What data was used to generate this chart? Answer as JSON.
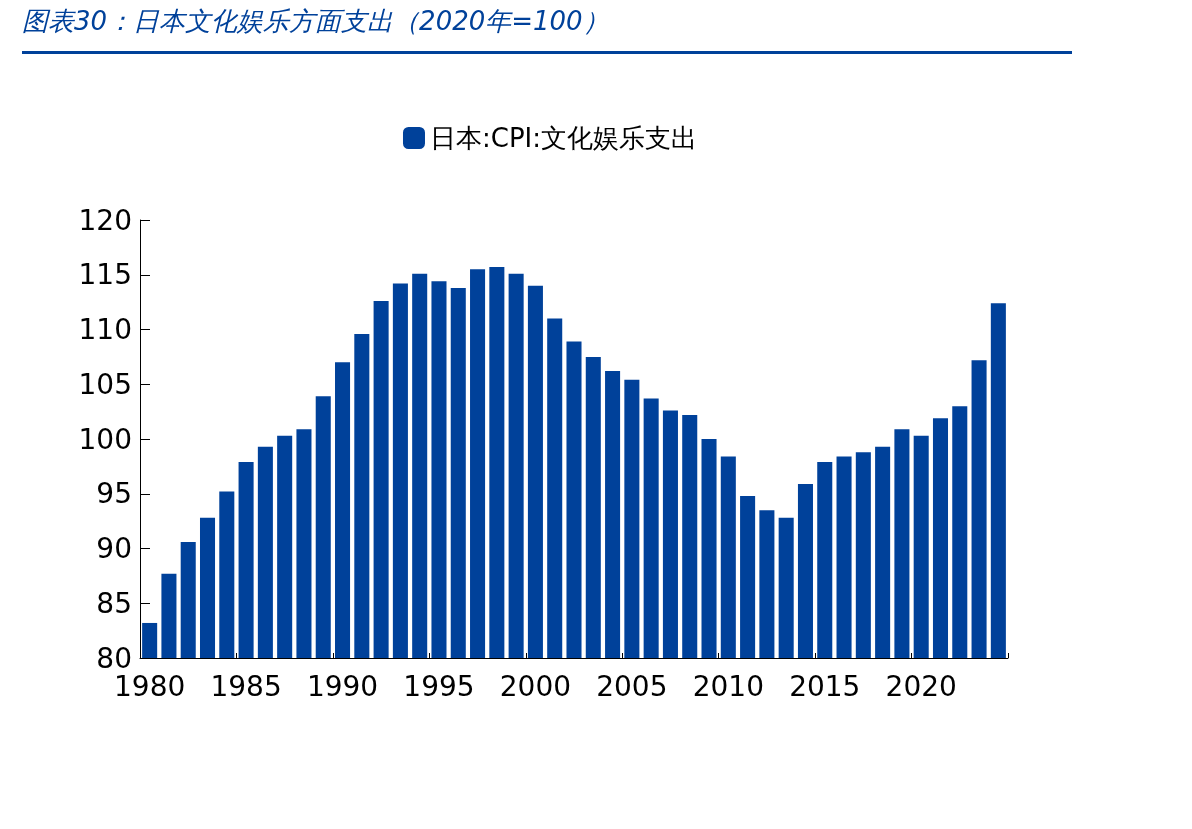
{
  "chart_data": {
    "type": "bar",
    "title": "图表30：日本文化娱乐方面支出（2020年=100）",
    "categories": [
      "1980",
      null,
      null,
      null,
      null,
      "1985",
      null,
      null,
      null,
      null,
      "1990",
      null,
      null,
      null,
      null,
      "1995",
      null,
      null,
      null,
      null,
      "2000",
      null,
      null,
      null,
      null,
      "2005",
      null,
      null,
      null,
      null,
      "2010",
      null,
      null,
      null,
      null,
      "2015",
      null,
      null,
      null,
      null,
      "2020",
      null,
      null,
      null,
      null
    ],
    "series": [
      {
        "name": "日本:CPI:文化娱乐支出",
        "color": "#00419a",
        "values": [
          83.2,
          87.7,
          90.6,
          92.8,
          95.2,
          97.9,
          99.3,
          100.3,
          100.9,
          103.9,
          107.0,
          109.6,
          112.6,
          114.2,
          115.1,
          114.4,
          113.8,
          115.5,
          115.7,
          115.1,
          114.0,
          111.0,
          108.9,
          107.5,
          106.2,
          105.4,
          103.7,
          102.6,
          102.2,
          100.0,
          98.4,
          94.8,
          93.5,
          92.8,
          95.9,
          97.9,
          98.4,
          98.8,
          99.3,
          100.9,
          100.3,
          101.9,
          103.0,
          107.2,
          112.4
        ]
      }
    ],
    "ylim": [
      80,
      120
    ],
    "yticks": [
      80,
      85,
      90,
      95,
      100,
      105,
      110,
      115,
      120
    ],
    "grid": false,
    "legend": "top"
  }
}
